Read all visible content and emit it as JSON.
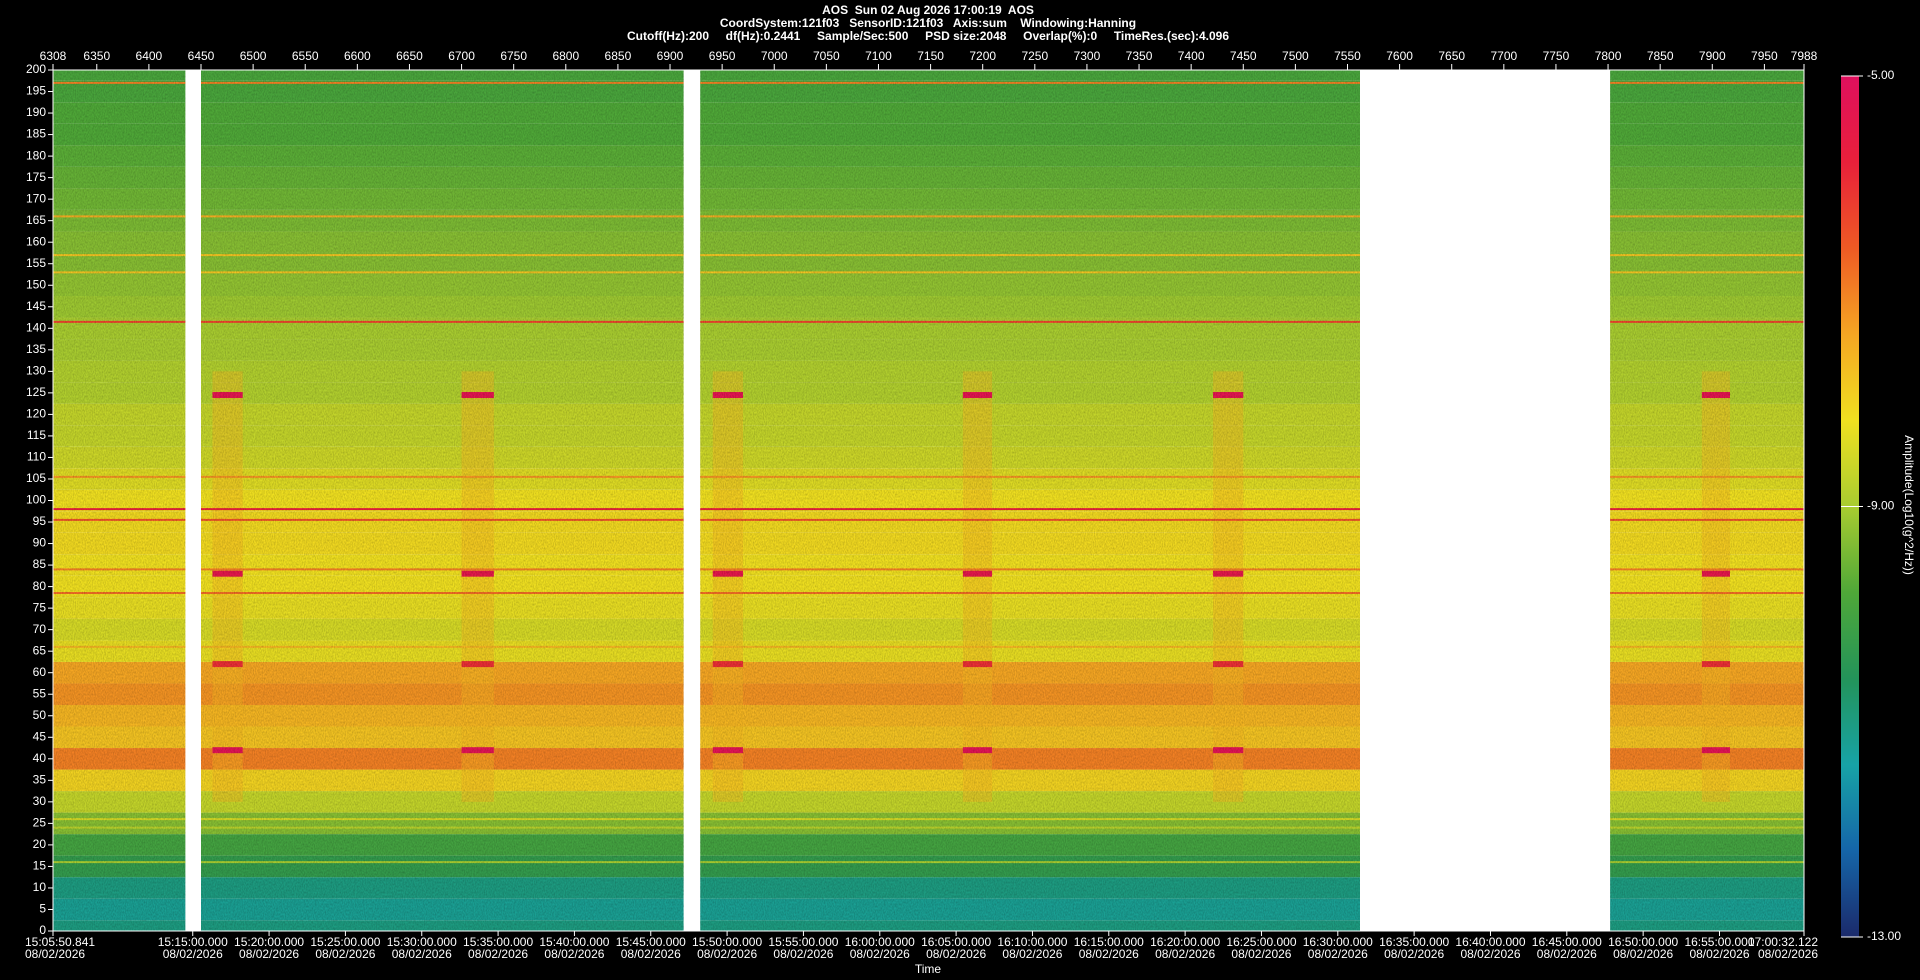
{
  "chart_data": {
    "type": "spectrogram",
    "title_lines": [
      "AOS  Sun 02 Aug 2026 17:00:19  AOS",
      "CoordSystem:121f03   SensorID:121f03   Axis:sum    Windowing:Hanning",
      "Cutoff(Hz):200     df(Hz):0.2441     Sample/Sec:500     PSD size:2048     Overlap(%):0     TimeRes.(sec):4.096"
    ],
    "xlabel": "Time",
    "colorbar_label": "Amplitude(Log10(g^2/Hz))",
    "xlim": [
      6308,
      7988
    ],
    "xticks": [
      6308,
      6350,
      6400,
      6450,
      6500,
      6550,
      6600,
      6650,
      6700,
      6750,
      6800,
      6850,
      6900,
      6950,
      7000,
      7050,
      7100,
      7150,
      7200,
      7250,
      7300,
      7350,
      7400,
      7450,
      7500,
      7550,
      7600,
      7650,
      7700,
      7750,
      7800,
      7850,
      7900,
      7950,
      7988
    ],
    "x2lim": [
      54350.841,
      61232.122
    ],
    "x2ticks": [
      {
        "value": 54350.841,
        "label": "15:05:50.841",
        "date": "08/02/2026"
      },
      {
        "value": 54900,
        "label": "15:15:00.000",
        "date": "08/02/2026"
      },
      {
        "value": 55200,
        "label": "15:20:00.000",
        "date": "08/02/2026"
      },
      {
        "value": 55500,
        "label": "15:25:00.000",
        "date": "08/02/2026"
      },
      {
        "value": 55800,
        "label": "15:30:00.000",
        "date": "08/02/2026"
      },
      {
        "value": 56100,
        "label": "15:35:00.000",
        "date": "08/02/2026"
      },
      {
        "value": 56400,
        "label": "15:40:00.000",
        "date": "08/02/2026"
      },
      {
        "value": 56700,
        "label": "15:45:00.000",
        "date": "08/02/2026"
      },
      {
        "value": 57000,
        "label": "15:50:00.000",
        "date": "08/02/2026"
      },
      {
        "value": 57300,
        "label": "15:55:00.000",
        "date": "08/02/2026"
      },
      {
        "value": 57600,
        "label": "16:00:00.000",
        "date": "08/02/2026"
      },
      {
        "value": 57900,
        "label": "16:05:00.000",
        "date": "08/02/2026"
      },
      {
        "value": 58200,
        "label": "16:10:00.000",
        "date": "08/02/2026"
      },
      {
        "value": 58500,
        "label": "16:15:00.000",
        "date": "08/02/2026"
      },
      {
        "value": 58800,
        "label": "16:20:00.000",
        "date": "08/02/2026"
      },
      {
        "value": 59100,
        "label": "16:25:00.000",
        "date": "08/02/2026"
      },
      {
        "value": 59400,
        "label": "16:30:00.000",
        "date": "08/02/2026"
      },
      {
        "value": 59700,
        "label": "16:35:00.000",
        "date": "08/02/2026"
      },
      {
        "value": 60000,
        "label": "16:40:00.000",
        "date": "08/02/2026"
      },
      {
        "value": 60300,
        "label": "16:45:00.000",
        "date": "08/02/2026"
      },
      {
        "value": 60600,
        "label": "16:50:00.000",
        "date": "08/02/2026"
      },
      {
        "value": 60900,
        "label": "16:55:00.000",
        "date": "08/02/2026"
      },
      {
        "value": 61232.122,
        "label": "17:00:32.122",
        "date": "08/02/2026"
      }
    ],
    "ylim": [
      0,
      200
    ],
    "yticks": [
      0,
      5,
      10,
      15,
      20,
      25,
      30,
      35,
      40,
      45,
      50,
      55,
      60,
      65,
      70,
      75,
      80,
      85,
      90,
      95,
      100,
      105,
      110,
      115,
      120,
      125,
      130,
      135,
      140,
      145,
      150,
      155,
      160,
      165,
      170,
      175,
      180,
      185,
      190,
      195,
      200
    ],
    "clim": [
      -13,
      -5
    ],
    "cticks": [
      {
        "value": -13,
        "label": "-13.00"
      },
      {
        "value": -9,
        "label": "-9.00"
      },
      {
        "value": -5,
        "label": "-5.00"
      }
    ],
    "colors": [
      "#1b2a6b",
      "#1565a8",
      "#17a3a6",
      "#23935a",
      "#4fa838",
      "#a8cc30",
      "#f0e020",
      "#f5a623",
      "#ee5a24",
      "#e8203a",
      "#e0105e"
    ],
    "segments": [
      {
        "start": 6308,
        "end": 6435
      },
      {
        "start": 6450,
        "end": 6913
      },
      {
        "start": 6929,
        "end": 7562
      },
      {
        "start": 7802,
        "end": 7988
      }
    ],
    "frequencies": [
      0,
      5,
      10,
      15,
      20,
      25,
      30,
      35,
      40,
      45,
      50,
      55,
      60,
      65,
      70,
      75,
      80,
      85,
      90,
      95,
      100,
      105,
      110,
      115,
      120,
      125,
      130,
      135,
      140,
      145,
      150,
      155,
      160,
      165,
      170,
      175,
      180,
      185,
      190,
      195,
      200
    ],
    "profile": [
      -11.0,
      -11.2,
      -11.0,
      -10.3,
      -10.0,
      -9.3,
      -8.7,
      -8.0,
      -7.0,
      -7.8,
      -7.6,
      -7.2,
      -7.4,
      -8.3,
      -8.5,
      -8.3,
      -8.2,
      -8.2,
      -8.1,
      -8.1,
      -8.2,
      -8.4,
      -8.6,
      -8.7,
      -8.7,
      -8.9,
      -8.9,
      -9.0,
      -9.0,
      -9.1,
      -9.2,
      -9.3,
      -9.3,
      -9.4,
      -9.5,
      -9.6,
      -9.7,
      -9.8,
      -9.8,
      -9.9,
      -9.9
    ],
    "tones": [
      {
        "freq": 197,
        "amp": -7.0
      },
      {
        "freq": 166,
        "amp": -7.5
      },
      {
        "freq": 157,
        "amp": -7.8
      },
      {
        "freq": 153,
        "amp": -7.8
      },
      {
        "freq": 141.5,
        "amp": -6.3
      },
      {
        "freq": 105.5,
        "amp": -7.2
      },
      {
        "freq": 98,
        "amp": -5.8
      },
      {
        "freq": 95.5,
        "amp": -6.5
      },
      {
        "freq": 84,
        "amp": -7.0
      },
      {
        "freq": 78.5,
        "amp": -6.8
      },
      {
        "freq": 66,
        "amp": -7.6
      },
      {
        "freq": 26,
        "amp": -8.5
      },
      {
        "freq": 24,
        "amp": -8.8
      },
      {
        "freq": 16,
        "amp": -9.0
      }
    ],
    "events": [
      {
        "start": 6461,
        "end": 6490
      },
      {
        "start": 6700,
        "end": 6731
      },
      {
        "start": 6941,
        "end": 6970
      },
      {
        "start": 7181,
        "end": 7209
      },
      {
        "start": 7421,
        "end": 7450
      },
      {
        "start": 7890,
        "end": 7917
      }
    ],
    "event_band": [
      30,
      130
    ],
    "event_level": -7.6,
    "event_tones": [
      {
        "freq": 124.5,
        "amp": -5.3
      },
      {
        "freq": 83,
        "amp": -5.4
      },
      {
        "freq": 62,
        "amp": -6.0
      },
      {
        "freq": 42,
        "amp": -5.2
      }
    ]
  }
}
